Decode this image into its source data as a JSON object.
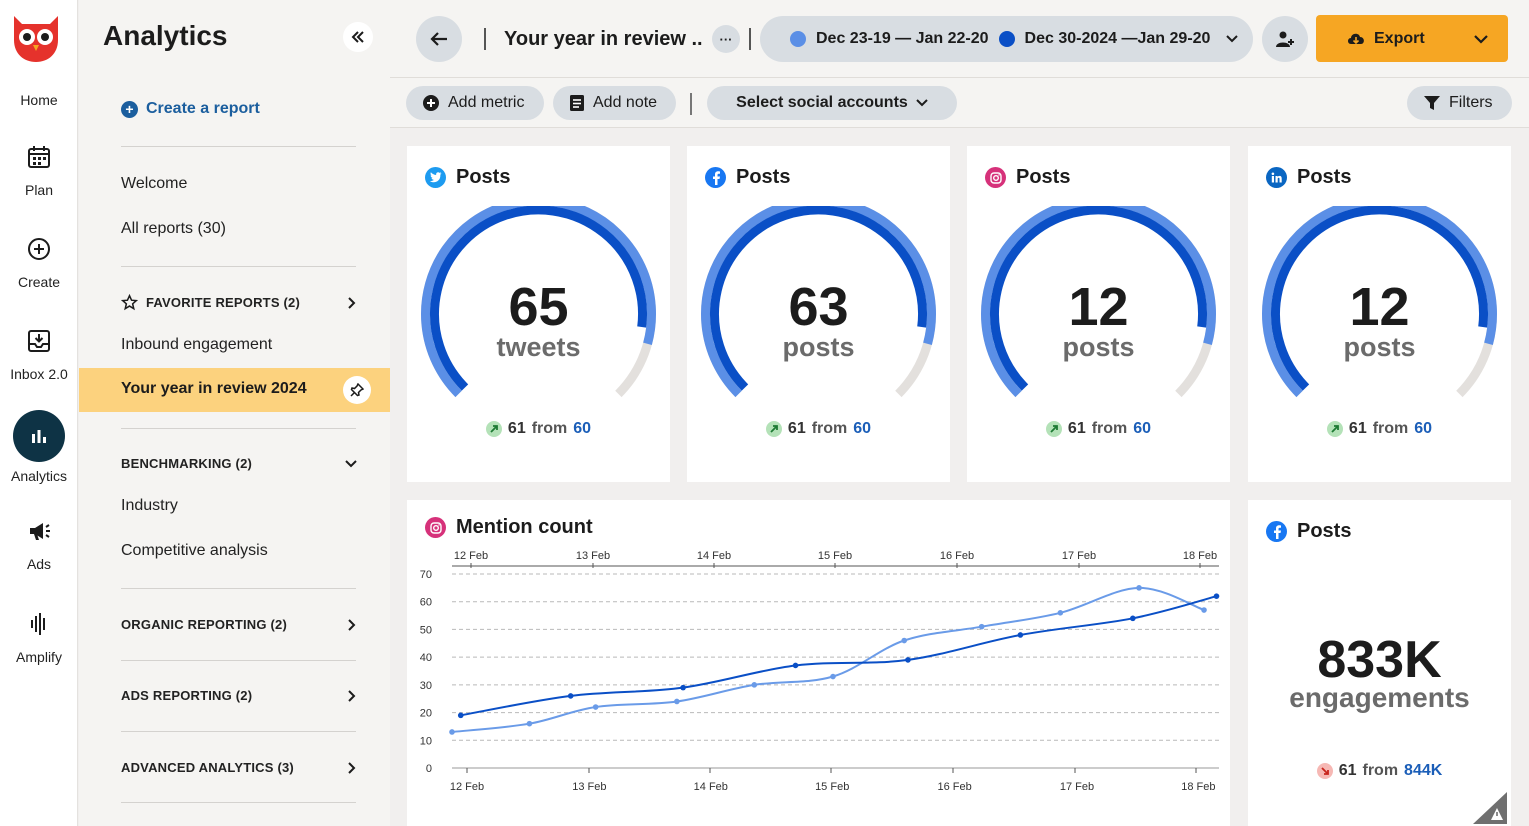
{
  "rail": {
    "items": [
      {
        "label": "Home"
      },
      {
        "label": "Plan"
      },
      {
        "label": "Create"
      },
      {
        "label": "Inbox 2.0"
      },
      {
        "label": "Analytics"
      },
      {
        "label": "Ads"
      },
      {
        "label": "Amplify"
      }
    ]
  },
  "sidebar": {
    "title": "Analytics",
    "create_report": "Create a report",
    "welcome": "Welcome",
    "all_reports": "All reports (30)",
    "favorite_reports": "FAVORITE REPORTS (2)",
    "inbound_engagement": "Inbound engagement",
    "active_report": "Your year in review 2024",
    "benchmarking": "BENCHMARKING (2)",
    "industry": "Industry",
    "competitive": "Competitive analysis",
    "organic": "ORGANIC REPORTING (2)",
    "ads": "ADS REPORTING (2)",
    "advanced": "ADVANCED ANALYTICS (3)"
  },
  "header": {
    "title": "Your year in review ..",
    "more": "···",
    "range_a": "Dec 23-19 — Jan 22-20",
    "range_b": "Dec 30-2024 —Jan 29-20",
    "export": "Export",
    "color_a": "#5b8fe6",
    "color_b": "#0a4fc6"
  },
  "toolbar": {
    "add_metric": "Add metric",
    "add_note": "Add note",
    "select_accounts": "Select social accounts",
    "filters": "Filters"
  },
  "gauges": [
    {
      "network": "twitter",
      "title": "Posts",
      "value": "65",
      "unit": "tweets",
      "delta": "61",
      "from": "from",
      "prev": "60"
    },
    {
      "network": "facebook",
      "title": "Posts",
      "value": "63",
      "unit": "posts",
      "delta": "61",
      "from": "from",
      "prev": "60"
    },
    {
      "network": "instagram",
      "title": "Posts",
      "value": "12",
      "unit": "posts",
      "delta": "61",
      "from": "from",
      "prev": "60"
    },
    {
      "network": "linkedin",
      "title": "Posts",
      "value": "12",
      "unit": "posts",
      "delta": "61",
      "from": "from",
      "prev": "60"
    }
  ],
  "engagement_card": {
    "title": "Posts",
    "value": "833K",
    "unit": "engagements",
    "delta": "61",
    "from": "from",
    "prev": "844K"
  },
  "chart_data": {
    "type": "line",
    "title": "Mention count",
    "x": [
      "12 Feb",
      "13 Feb",
      "14 Feb",
      "15 Feb",
      "16 Feb",
      "17 Feb",
      "18 Feb"
    ],
    "ylim": [
      0,
      70
    ],
    "yticks": [
      0,
      10,
      20,
      30,
      40,
      50,
      60,
      70
    ],
    "grid": true,
    "series": [
      {
        "color": "#0a4fc6",
        "points": [
          [
            12.05,
            19
          ],
          [
            12.93,
            26
          ],
          [
            13.83,
            29
          ],
          [
            14.73,
            37
          ],
          [
            15.63,
            39
          ],
          [
            16.53,
            48
          ],
          [
            17.43,
            54
          ],
          [
            18.1,
            62
          ]
        ]
      },
      {
        "color": "#6a9be8",
        "points": [
          [
            11.98,
            13
          ],
          [
            12.6,
            16
          ],
          [
            13.13,
            22
          ],
          [
            13.78,
            24
          ],
          [
            14.4,
            30
          ],
          [
            15.03,
            33
          ],
          [
            15.6,
            46
          ],
          [
            16.22,
            51
          ],
          [
            16.85,
            56
          ],
          [
            17.48,
            65
          ],
          [
            18.0,
            57
          ]
        ]
      }
    ]
  }
}
